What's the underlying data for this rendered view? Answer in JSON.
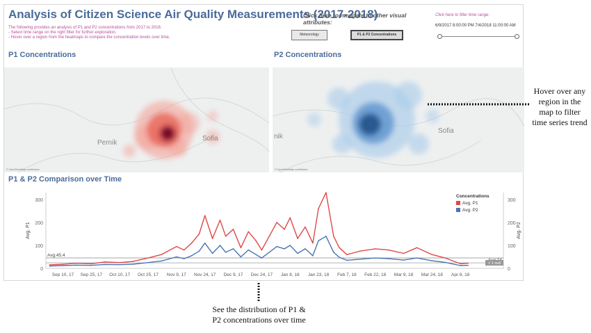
{
  "header": {
    "title": "Analysis of Citizen Science Air Quality Measurements (2017-2018)",
    "desc_lines": [
      "The following provides an analysis of P1 and P2 concentrations from 2017 to 2018.",
      "- Select time range on the right filter for further exploration.",
      "- Hover over a region from the heatmaps to compare the concentration levels over time."
    ],
    "nav_label": "Click here to navigate to other visual attributes:",
    "nav_buttons": [
      "Meteorology",
      "P1 & P2 Concentrations"
    ],
    "time_filter_label": "Click here to filter time range:",
    "time_range_value": "6/9/2017 8:00:00 PM  7/4/2018 11:00:00 AM"
  },
  "maps": {
    "p1_title": "P1 Concentrations",
    "p2_title": "P2 Concentrations",
    "p1_cities": [
      "Pernik",
      "Sofia"
    ],
    "p2_cities": [
      "nik",
      "Sofia"
    ],
    "credit": "© OpenStreetMap contributors",
    "p1_color": "#e03030",
    "p2_color": "#3a7fc4"
  },
  "chart_section_title": "P1 & P2 Comparison over Time",
  "chart_data": {
    "type": "line",
    "title": "",
    "xlabel": "",
    "ylabel": "Avg. P1",
    "ylabel_right": "Avg. P2",
    "ylim": [
      0,
      330
    ],
    "y_ticks": [
      0,
      100,
      200,
      300
    ],
    "x_ticks": [
      "Sep 10, 17",
      "Sep 25, 17",
      "Oct 10, 17",
      "Oct 25, 17",
      "Nov 9, 17",
      "Nov 24, 17",
      "Dec 9, 17",
      "Dec 24, 17",
      "Jan 8, 18",
      "Jan 23, 18",
      "Feb 7, 18",
      "Feb 22, 18",
      "Mar 9, 18",
      "Mar 24, 18",
      "Apr 8, 18"
    ],
    "legend_title": "Concentrations",
    "legend_placement": "top-right",
    "grid": false,
    "series": [
      {
        "name": "Avg. P1",
        "color": "#e04848",
        "x": [
          "Sep 3, 17",
          "Sep 10, 17",
          "Sep 17, 17",
          "Sep 25, 17",
          "Oct 2, 17",
          "Oct 10, 17",
          "Oct 17, 17",
          "Oct 25, 17",
          "Nov 1, 17",
          "Nov 9, 17",
          "Nov 13, 17",
          "Nov 17, 17",
          "Nov 21, 17",
          "Nov 24, 17",
          "Nov 28, 17",
          "Dec 2, 17",
          "Dec 5, 17",
          "Dec 9, 17",
          "Dec 13, 17",
          "Dec 17, 17",
          "Dec 21, 17",
          "Dec 24, 17",
          "Dec 28, 17",
          "Jan 1, 18",
          "Jan 5, 18",
          "Jan 8, 18",
          "Jan 12, 18",
          "Jan 16, 18",
          "Jan 20, 18",
          "Jan 23, 18",
          "Jan 27, 18",
          "Jan 31, 18",
          "Feb 3, 18",
          "Feb 7, 18",
          "Feb 14, 18",
          "Feb 22, 18",
          "Mar 1, 18",
          "Mar 9, 18",
          "Mar 16, 18",
          "Mar 24, 18",
          "Mar 31, 18",
          "Apr 8, 18",
          "Apr 12, 18"
        ],
        "values": [
          15,
          18,
          22,
          20,
          28,
          25,
          30,
          45,
          60,
          95,
          80,
          110,
          150,
          230,
          130,
          210,
          140,
          170,
          90,
          160,
          120,
          80,
          140,
          200,
          170,
          220,
          130,
          180,
          110,
          260,
          330,
          140,
          90,
          60,
          75,
          85,
          80,
          65,
          90,
          60,
          45,
          20,
          22
        ]
      },
      {
        "name": "Avg. P2",
        "color": "#4a74b4",
        "x": [
          "Sep 3, 17",
          "Sep 10, 17",
          "Sep 17, 17",
          "Sep 25, 17",
          "Oct 2, 17",
          "Oct 10, 17",
          "Oct 17, 17",
          "Oct 25, 17",
          "Nov 1, 17",
          "Nov 9, 17",
          "Nov 13, 17",
          "Nov 17, 17",
          "Nov 21, 17",
          "Nov 24, 17",
          "Nov 28, 17",
          "Dec 2, 17",
          "Dec 5, 17",
          "Dec 9, 17",
          "Dec 13, 17",
          "Dec 17, 17",
          "Dec 21, 17",
          "Dec 24, 17",
          "Dec 28, 17",
          "Jan 1, 18",
          "Jan 5, 18",
          "Jan 8, 18",
          "Jan 12, 18",
          "Jan 16, 18",
          "Jan 20, 18",
          "Jan 23, 18",
          "Jan 27, 18",
          "Jan 31, 18",
          "Feb 3, 18",
          "Feb 7, 18",
          "Feb 14, 18",
          "Feb 22, 18",
          "Mar 1, 18",
          "Mar 9, 18",
          "Mar 16, 18",
          "Mar 24, 18",
          "Mar 31, 18",
          "Apr 8, 18",
          "Apr 12, 18"
        ],
        "values": [
          10,
          12,
          14,
          13,
          17,
          16,
          18,
          25,
          32,
          50,
          42,
          55,
          75,
          110,
          65,
          100,
          70,
          85,
          50,
          80,
          60,
          45,
          70,
          95,
          85,
          100,
          65,
          85,
          55,
          120,
          140,
          70,
          48,
          35,
          40,
          45,
          42,
          36,
          45,
          33,
          26,
          12,
          13
        ]
      }
    ],
    "reference_lines": [
      {
        "label": "Avg:45.4",
        "value": 45.4,
        "side": "left"
      },
      {
        "label": "Avg:24",
        "value": 24,
        "side": "right"
      }
    ],
    "null_badge": "> 1 null"
  },
  "annotations": {
    "right": "Hover over any region in the map to filter time series trend",
    "bottom_line1": "See the distribution of P1 &",
    "bottom_line2": "P2 concentrations over time"
  }
}
